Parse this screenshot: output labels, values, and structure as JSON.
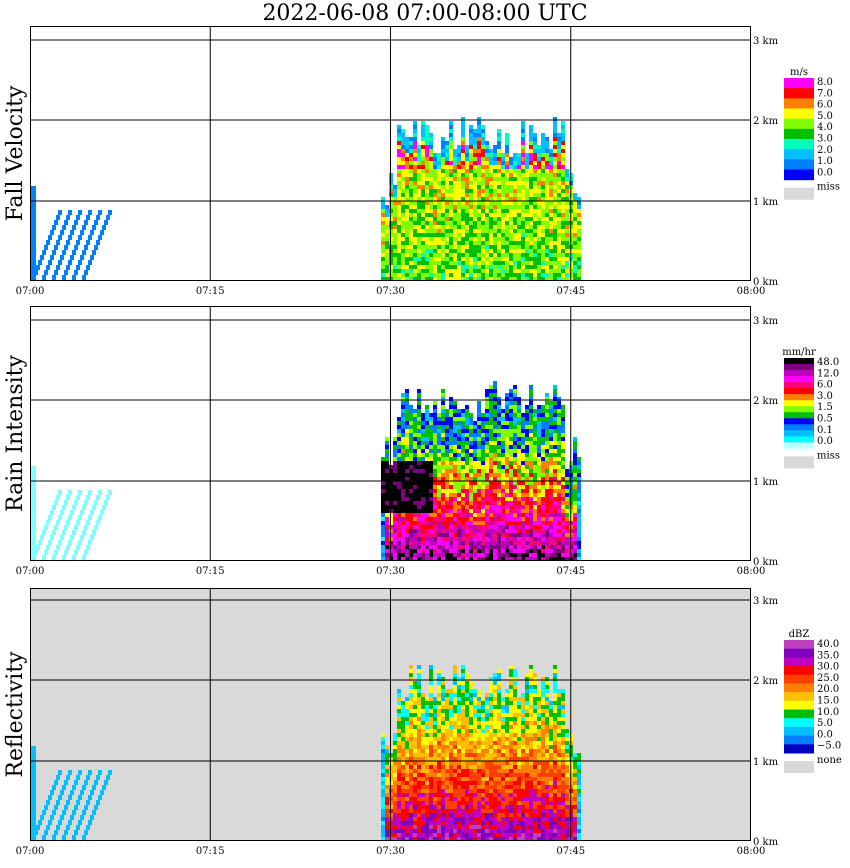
{
  "title": "2022-06-08   07:00-08:00 UTC",
  "chart_data": [
    {
      "type": "heatmap",
      "ylabel": "Fall Velocity",
      "background": "#ffffff",
      "x_ticks": [
        "07:00",
        "07:15",
        "07:30",
        "07:45",
        "08:00"
      ],
      "y_ticks": [
        "0 km",
        "1 km",
        "2 km",
        "3 km"
      ],
      "legend": {
        "unit": "m/s",
        "labels": [
          "8.0",
          "7.0",
          "6.0",
          "5.0",
          "4.0",
          "3.0",
          "2.0",
          "1.0",
          "0.0",
          "miss"
        ],
        "colors": [
          "#ff00ff",
          "#ff0000",
          "#ff7f00",
          "#ffff00",
          "#7fff00",
          "#00bf00",
          "#00ffbf",
          "#00bfff",
          "#007fff",
          "#0000ff"
        ],
        "miss_color": "#d9d9d9"
      }
    },
    {
      "type": "heatmap",
      "ylabel": "Rain Intensity",
      "background": "#ffffff",
      "x_ticks": [
        "07:00",
        "07:15",
        "07:30",
        "07:45",
        "08:00"
      ],
      "y_ticks": [
        "0 km",
        "1 km",
        "2 km",
        "3 km"
      ],
      "legend": {
        "unit": "mm/hr",
        "labels": [
          "48.0",
          "12.0",
          "6.0",
          "3.0",
          "1.5",
          "0.5",
          "0.1",
          "0.0",
          "miss"
        ],
        "colors": [
          "#000000",
          "#7f007f",
          "#bf00bf",
          "#ff00ff",
          "#ff007f",
          "#ff0000",
          "#ff7f00",
          "#ffff00",
          "#7fff00",
          "#00bf00",
          "#0000ff",
          "#007fff",
          "#00bfff",
          "#00ffff",
          "#bfffff"
        ],
        "miss_color": "#d9d9d9"
      }
    },
    {
      "type": "heatmap",
      "ylabel": "Reflectivity",
      "background": "#d9d9d9",
      "x_ticks": [
        "07:00",
        "07:15",
        "07:30",
        "07:45",
        "08:00"
      ],
      "y_ticks": [
        "0 km",
        "1 km",
        "2 km",
        "3 km"
      ],
      "legend": {
        "unit": "dBZ",
        "labels": [
          "40.0",
          "35.0",
          "30.0",
          "25.0",
          "20.0",
          "15.0",
          "10.0",
          "5.0",
          "0.0",
          "−5.0",
          "none"
        ],
        "colors": [
          "#bf40bf",
          "#7f00bf",
          "#bf00bf",
          "#ff0000",
          "#ff3f00",
          "#ff7f00",
          "#ffbf00",
          "#ffff00",
          "#00bf00",
          "#00ffff",
          "#00bfff",
          "#007fff",
          "#0000bf"
        ],
        "miss_color": "#d9d9d9"
      }
    }
  ]
}
